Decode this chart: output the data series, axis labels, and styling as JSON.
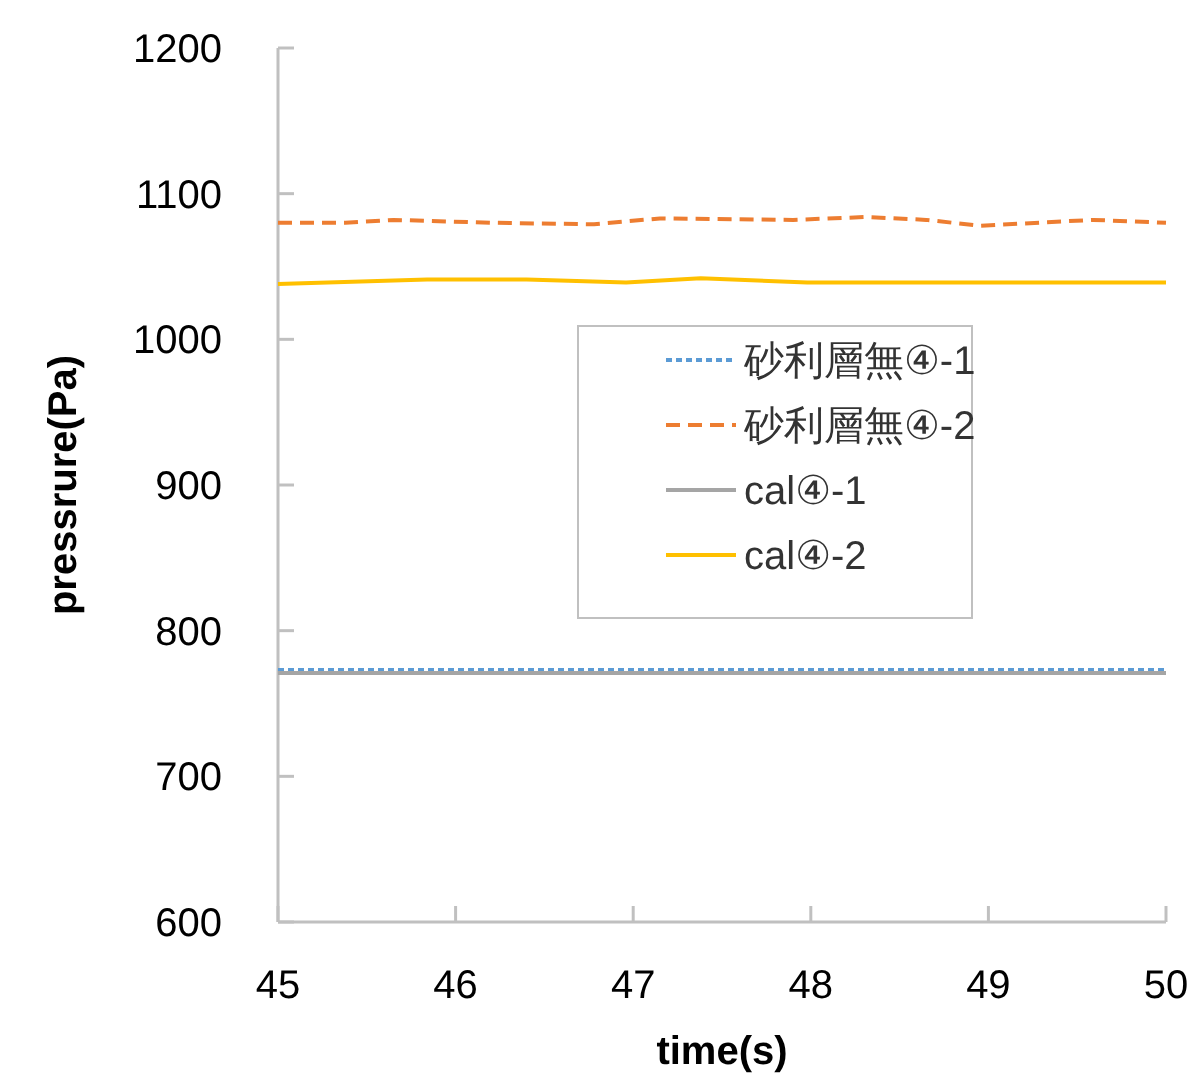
{
  "chart_data": {
    "type": "line",
    "xlabel": "time(s)",
    "ylabel": "pressrure(Pa)",
    "xlim": [
      45,
      50
    ],
    "ylim": [
      600,
      1200
    ],
    "xticks": [
      45,
      46,
      47,
      48,
      49,
      50
    ],
    "yticks": [
      600,
      700,
      800,
      900,
      1000,
      1100,
      1200
    ],
    "legend": "right",
    "series": [
      {
        "name": "砂利層無④-1",
        "color": "#5b9bd5",
        "line_style": "dotted",
        "x": [
          45,
          46,
          47,
          48,
          49,
          50
        ],
        "values": [
          773,
          773,
          773,
          773,
          773,
          773
        ]
      },
      {
        "name": "砂利層無④-2",
        "color": "#ed7d31",
        "line_style": "dashed",
        "x": [
          45,
          45.38,
          45.65,
          46.21,
          46.78,
          47.15,
          47.9,
          48.31,
          48.65,
          48.95,
          49.59,
          50
        ],
        "values": [
          1080,
          1080,
          1082,
          1080,
          1079,
          1083,
          1082,
          1084,
          1082,
          1078,
          1082,
          1080
        ]
      },
      {
        "name": "cal④-1",
        "color": "#a5a5a5",
        "line_style": "solid",
        "x": [
          45,
          46,
          47,
          48,
          49,
          50
        ],
        "values": [
          771,
          771,
          771,
          771,
          771,
          771
        ]
      },
      {
        "name": "cal④-2",
        "color": "#ffc000",
        "line_style": "solid",
        "x": [
          45,
          45.84,
          46.4,
          46.96,
          47.38,
          47.98,
          49.03,
          50
        ],
        "values": [
          1038,
          1041,
          1041,
          1039,
          1042,
          1039,
          1039,
          1039
        ]
      }
    ]
  }
}
